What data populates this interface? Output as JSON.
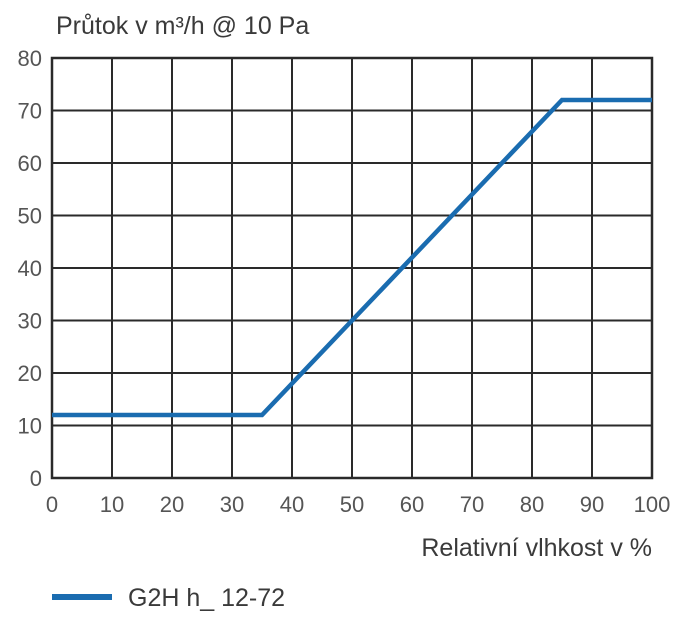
{
  "chart_data": {
    "type": "line",
    "title": "Průtok v m³/h @ 10 Pa",
    "xlabel": "Relativní vlhkost v %",
    "ylabel": "",
    "xlim": [
      0,
      100
    ],
    "ylim": [
      0,
      80
    ],
    "xticks": [
      "0",
      "10",
      "20",
      "30",
      "40",
      "50",
      "60",
      "70",
      "80",
      "90",
      "100"
    ],
    "yticks": [
      "0",
      "10",
      "20",
      "30",
      "40",
      "50",
      "60",
      "70",
      "80"
    ],
    "grid": true,
    "legend_position": "bottom-left",
    "series": [
      {
        "name": "G2H h_ 12-72",
        "color": "#1a6cb0",
        "x": [
          0,
          35,
          85,
          100
        ],
        "y": [
          12,
          12,
          72,
          72
        ]
      }
    ]
  }
}
